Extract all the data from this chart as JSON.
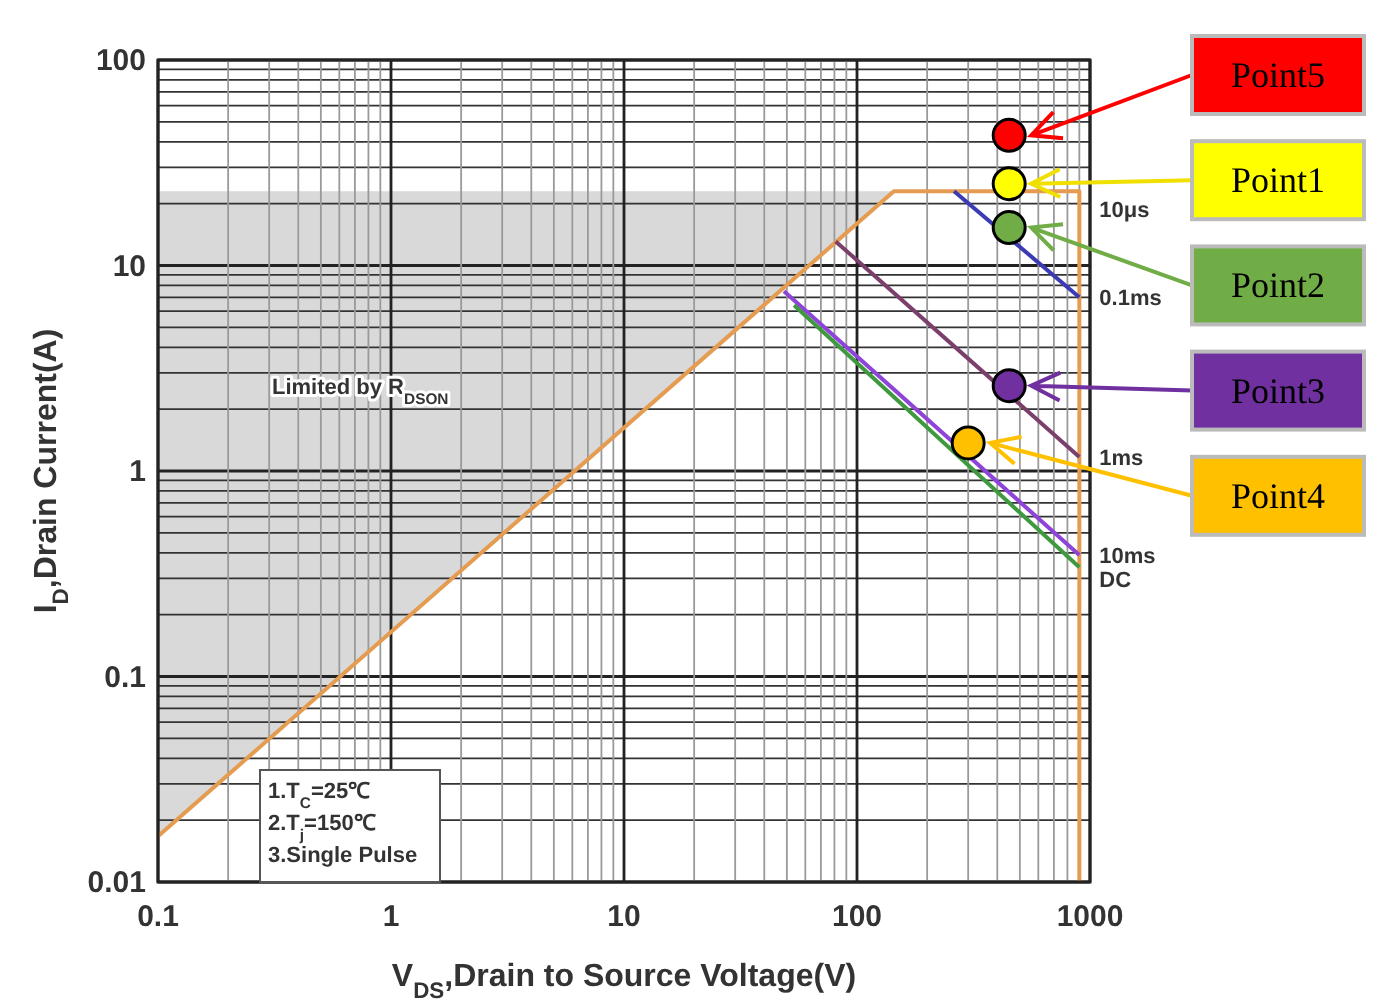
{
  "chart_data": {
    "type": "line",
    "xlabel": "V$_{DS}$,Drain to Source Voltage(V)",
    "ylabel": "I$_{D}$,Drain Current(A)",
    "log": "xy",
    "grid": true,
    "legend": "right",
    "xlim": [
      0.1,
      1000
    ],
    "ylim": [
      0.01,
      100
    ],
    "xticks": [
      0.1,
      {
        "value": 0.2,
        "label": null
      },
      {
        "value": 0.3,
        "label": null
      },
      {
        "value": 0.4,
        "label": null
      },
      {
        "value": 0.5,
        "label": null
      },
      {
        "value": 0.6,
        "label": null
      },
      {
        "value": 0.7,
        "label": null
      },
      {
        "value": 0.8,
        "label": null
      },
      {
        "value": 0.9,
        "label": null
      },
      1,
      {
        "value": 2,
        "label": null
      },
      {
        "value": 3,
        "label": null
      },
      {
        "value": 4,
        "label": null
      },
      {
        "value": 5,
        "label": null
      },
      {
        "value": 6,
        "label": null
      },
      {
        "value": 7,
        "label": null
      },
      {
        "value": 8,
        "label": null
      },
      {
        "value": 9,
        "label": null
      },
      10,
      {
        "value": 20,
        "label": null
      },
      {
        "value": 30,
        "label": null
      },
      {
        "value": 40,
        "label": null
      },
      {
        "value": 50,
        "label": null
      },
      {
        "value": 60,
        "label": null
      },
      {
        "value": 70,
        "label": null
      },
      {
        "value": 80,
        "label": null
      },
      {
        "value": 90,
        "label": null
      },
      100,
      {
        "value": 200,
        "label": null
      },
      {
        "value": 300,
        "label": null
      },
      {
        "value": 400,
        "label": null
      },
      {
        "value": 500,
        "label": null
      },
      {
        "value": 600,
        "label": null
      },
      {
        "value": 700,
        "label": null
      },
      {
        "value": 800,
        "label": null
      },
      {
        "value": 900,
        "label": null
      },
      1000
    ],
    "yticks": [
      0.01,
      {
        "value": 0.02,
        "label": null
      },
      {
        "value": 0.03,
        "label": null
      },
      {
        "value": 0.04,
        "label": null
      },
      {
        "value": 0.05,
        "label": null
      },
      {
        "value": 0.06,
        "label": null
      },
      {
        "value": 0.07,
        "label": null
      },
      {
        "value": 0.08,
        "label": null
      },
      {
        "value": 0.09,
        "label": null
      },
      0.1,
      {
        "value": 0.2,
        "label": null
      },
      {
        "value": 0.3,
        "label": null
      },
      {
        "value": 0.4,
        "label": null
      },
      {
        "value": 0.5,
        "label": null
      },
      {
        "value": 0.6,
        "label": null
      },
      {
        "value": 0.7,
        "label": null
      },
      {
        "value": 0.8,
        "label": null
      },
      {
        "value": 0.9,
        "label": null
      },
      1,
      {
        "value": 2,
        "label": null
      },
      {
        "value": 3,
        "label": null
      },
      {
        "value": 4,
        "label": null
      },
      {
        "value": 5,
        "label": null
      },
      {
        "value": 6,
        "label": null
      },
      {
        "value": 7,
        "label": null
      },
      {
        "value": 8,
        "label": null
      },
      {
        "value": 9,
        "label": null
      },
      10,
      {
        "value": 20,
        "label": null
      },
      {
        "value": 30,
        "label": null
      },
      {
        "value": 40,
        "label": null
      },
      {
        "value": 50,
        "label": null
      },
      {
        "value": 60,
        "label": null
      },
      {
        "value": 70,
        "label": null
      },
      {
        "value": 80,
        "label": null
      },
      {
        "value": 90,
        "label": null
      },
      100
    ],
    "series": [
      {
        "type": "area",
        "color": "#d9d9d9",
        "x": [
          0.1,
          144
        ],
        "values": [
          23,
          23
        ]
      },
      {
        "name": "10μs",
        "color": "#e59b50",
        "x": [
          0.1,
          144,
          900,
          900
        ],
        "values": [
          0.0167,
          23,
          23,
          0.01
        ]
      },
      {
        "name": "0.1ms",
        "color": "#3b3bb5",
        "x": [
          261,
          900
        ],
        "values": [
          23,
          7
        ]
      },
      {
        "name": "1ms",
        "color": "#7a3f6a",
        "x": [
          81,
          900
        ],
        "values": [
          13.1,
          1.17
        ]
      },
      {
        "name": "10ms",
        "color": "#8e44d8",
        "x": [
          48.6,
          900
        ],
        "values": [
          7.5,
          0.39
        ]
      },
      {
        "name": "DC",
        "color": "#3f9a3f",
        "x": [
          53.7,
          900
        ],
        "values": [
          6.4,
          0.34
        ]
      },
      {
        "type": "scatter",
        "name": "Point5",
        "color": "#ff0000",
        "marker": "circle",
        "x": [
          450
        ],
        "values": [
          43
        ]
      },
      {
        "type": "scatter",
        "name": "Point1",
        "color": "#ffff00",
        "marker": "circle",
        "x": [
          450
        ],
        "values": [
          25
        ]
      },
      {
        "type": "scatter",
        "name": "Point2",
        "color": "#70ad47",
        "marker": "circle",
        "x": [
          450
        ],
        "values": [
          15.3
        ]
      },
      {
        "type": "scatter",
        "name": "Point3",
        "color": "#7030a0",
        "marker": "circle",
        "x": [
          450
        ],
        "values": [
          2.6
        ]
      },
      {
        "type": "scatter",
        "name": "Point4",
        "color": "#ffc000",
        "marker": "circle",
        "x": [
          300
        ],
        "values": [
          1.37
        ]
      }
    ],
    "annotations": [
      "Limited by R$_{DSON}$",
      "1.T$_{C}$=25℃",
      "2.T$_{j}$=150℃",
      "3.Single Pulse"
    ]
  }
}
